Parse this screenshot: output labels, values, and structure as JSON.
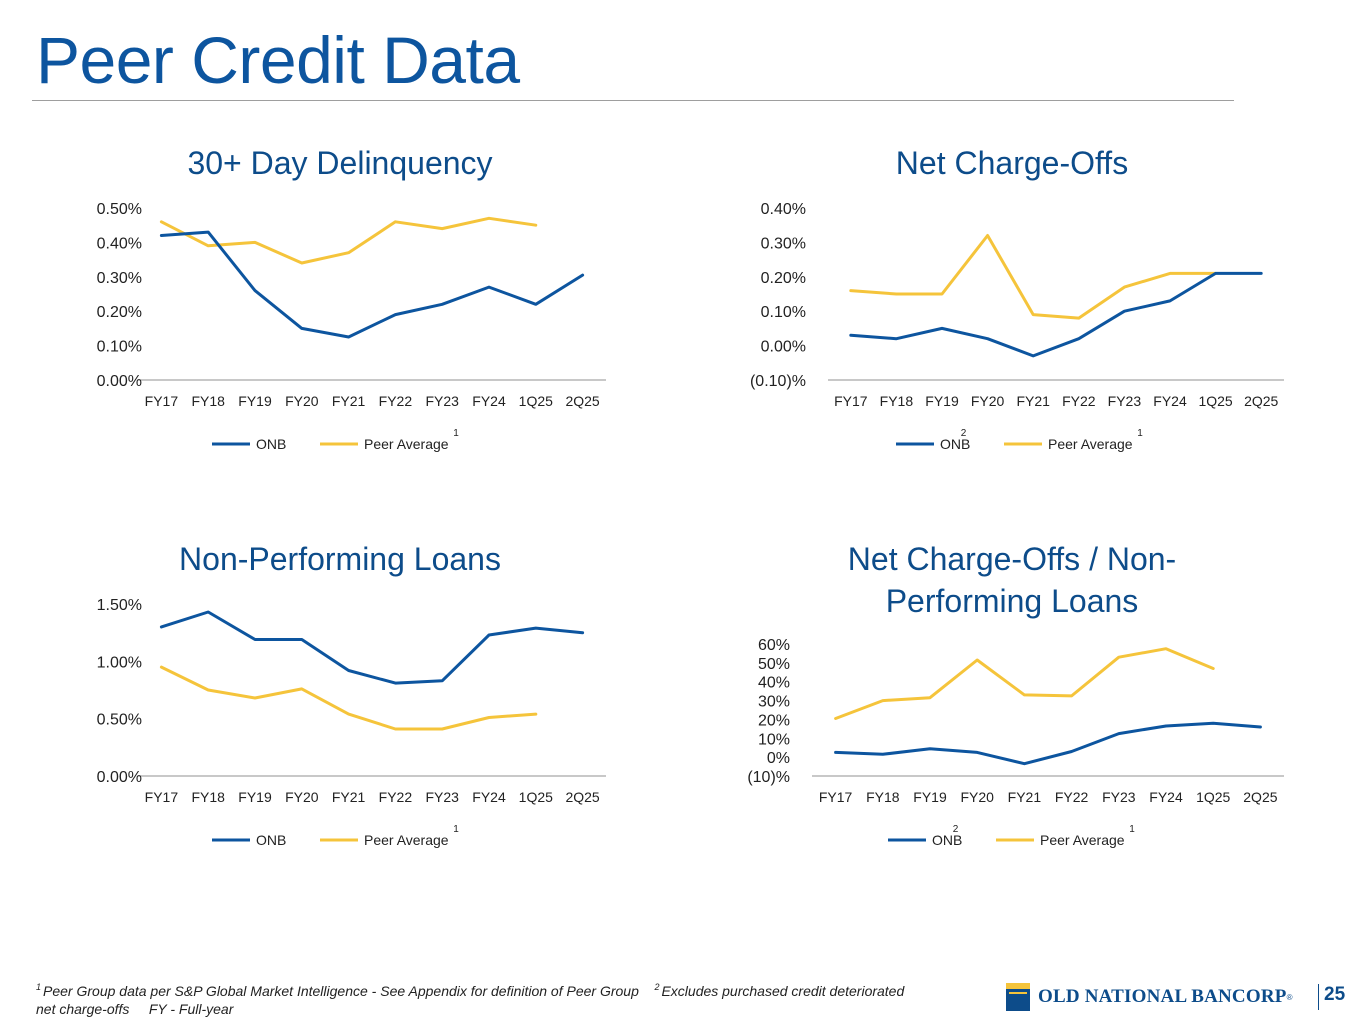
{
  "title": "Peer Credit Data",
  "colors": {
    "onb": "#0d559f",
    "peer": "#f5c43b",
    "title": "#0d559f"
  },
  "charts": [
    {
      "id": "delinquency",
      "title_lines": [
        "30+ Day Delinquency"
      ],
      "legend": [
        {
          "label": "ONB",
          "sup": ""
        },
        {
          "label": "Peer Average",
          "sup": "1"
        }
      ]
    },
    {
      "id": "nco",
      "title_lines": [
        "Net Charge-Offs"
      ],
      "legend": [
        {
          "label": "ONB",
          "sup": "2"
        },
        {
          "label": "Peer Average",
          "sup": "1"
        }
      ]
    },
    {
      "id": "npl",
      "title_lines": [
        "Non-Performing Loans"
      ],
      "legend": [
        {
          "label": "ONB",
          "sup": ""
        },
        {
          "label": "Peer Average",
          "sup": "1"
        }
      ]
    },
    {
      "id": "nco-npl",
      "title_lines": [
        "Net Charge-Offs / Non-",
        "Performing Loans"
      ],
      "legend": [
        {
          "label": "ONB",
          "sup": "2"
        },
        {
          "label": "Peer Average",
          "sup": "1"
        }
      ]
    }
  ],
  "chart_data": [
    {
      "type": "line",
      "title": "30+ Day Delinquency",
      "categories": [
        "FY17",
        "FY18",
        "FY19",
        "FY20",
        "FY21",
        "FY22",
        "FY23",
        "FY24",
        "1Q25",
        "2Q25"
      ],
      "ylim": [
        0,
        0.5
      ],
      "yticks": [
        0,
        0.1,
        0.2,
        0.3,
        0.4,
        0.5
      ],
      "ytick_labels": [
        "0.00%",
        "0.10%",
        "0.20%",
        "0.30%",
        "0.40%",
        "0.50%"
      ],
      "series": [
        {
          "name": "ONB",
          "values": [
            0.42,
            0.43,
            0.26,
            0.15,
            0.125,
            0.19,
            0.22,
            0.27,
            0.22,
            0.305
          ]
        },
        {
          "name": "Peer Average",
          "values": [
            0.46,
            0.39,
            0.4,
            0.34,
            0.37,
            0.46,
            0.44,
            0.47,
            0.45,
            null
          ]
        }
      ]
    },
    {
      "type": "line",
      "title": "Net Charge-Offs",
      "categories": [
        "FY17",
        "FY18",
        "FY19",
        "FY20",
        "FY21",
        "FY22",
        "FY23",
        "FY24",
        "1Q25",
        "2Q25"
      ],
      "ylim": [
        -0.1,
        0.4
      ],
      "yticks": [
        -0.1,
        0,
        0.1,
        0.2,
        0.3,
        0.4
      ],
      "ytick_labels": [
        "(0.10)%",
        "0.00%",
        "0.10%",
        "0.20%",
        "0.30%",
        "0.40%"
      ],
      "series": [
        {
          "name": "ONB",
          "values": [
            0.03,
            0.02,
            0.05,
            0.02,
            -0.03,
            0.02,
            0.1,
            0.13,
            0.21,
            0.21
          ]
        },
        {
          "name": "Peer Average",
          "values": [
            0.16,
            0.15,
            0.15,
            0.32,
            0.09,
            0.08,
            0.17,
            0.21,
            0.21,
            null
          ]
        }
      ]
    },
    {
      "type": "line",
      "title": "Non-Performing Loans",
      "categories": [
        "FY17",
        "FY18",
        "FY19",
        "FY20",
        "FY21",
        "FY22",
        "FY23",
        "FY24",
        "1Q25",
        "2Q25"
      ],
      "ylim": [
        0,
        1.5
      ],
      "yticks": [
        0,
        0.5,
        1.0,
        1.5
      ],
      "ytick_labels": [
        "0.00%",
        "0.50%",
        "1.00%",
        "1.50%"
      ],
      "series": [
        {
          "name": "ONB",
          "values": [
            1.3,
            1.43,
            1.19,
            1.19,
            0.92,
            0.81,
            0.83,
            1.23,
            1.29,
            1.25
          ]
        },
        {
          "name": "Peer Average",
          "values": [
            0.95,
            0.75,
            0.68,
            0.76,
            0.54,
            0.41,
            0.41,
            0.51,
            0.54,
            null
          ]
        }
      ]
    },
    {
      "type": "line",
      "title": "Net Charge-Offs / Non-Performing Loans",
      "categories": [
        "FY17",
        "FY18",
        "FY19",
        "FY20",
        "FY21",
        "FY22",
        "FY23",
        "FY24",
        "1Q25",
        "2Q25"
      ],
      "ylim": [
        -10,
        60
      ],
      "yticks": [
        -10,
        0,
        10,
        20,
        30,
        40,
        50,
        60
      ],
      "ytick_labels": [
        "(10)%",
        "0%",
        "10%",
        "20%",
        "30%",
        "40%",
        "50%",
        "60%"
      ],
      "series": [
        {
          "name": "ONB",
          "values": [
            2.5,
            1.5,
            4.5,
            2.5,
            -3.5,
            3,
            12.5,
            16.5,
            18,
            16
          ]
        },
        {
          "name": "Peer Average",
          "values": [
            20.5,
            30,
            31.5,
            51.5,
            33,
            32.5,
            53,
            57.5,
            47,
            null
          ]
        }
      ]
    }
  ],
  "footnote": {
    "note1_sup": "1",
    "note1": "Peer Group data per S&P Global Market Intelligence - See Appendix for definition of Peer Group",
    "note2_sup": "2",
    "note2": "Excludes purchased credit deteriorated net charge-offs",
    "note3": "FY - Full-year"
  },
  "logo": {
    "text": "OLD NATIONAL BANCORP",
    "reg": "®"
  },
  "page_number": "25"
}
